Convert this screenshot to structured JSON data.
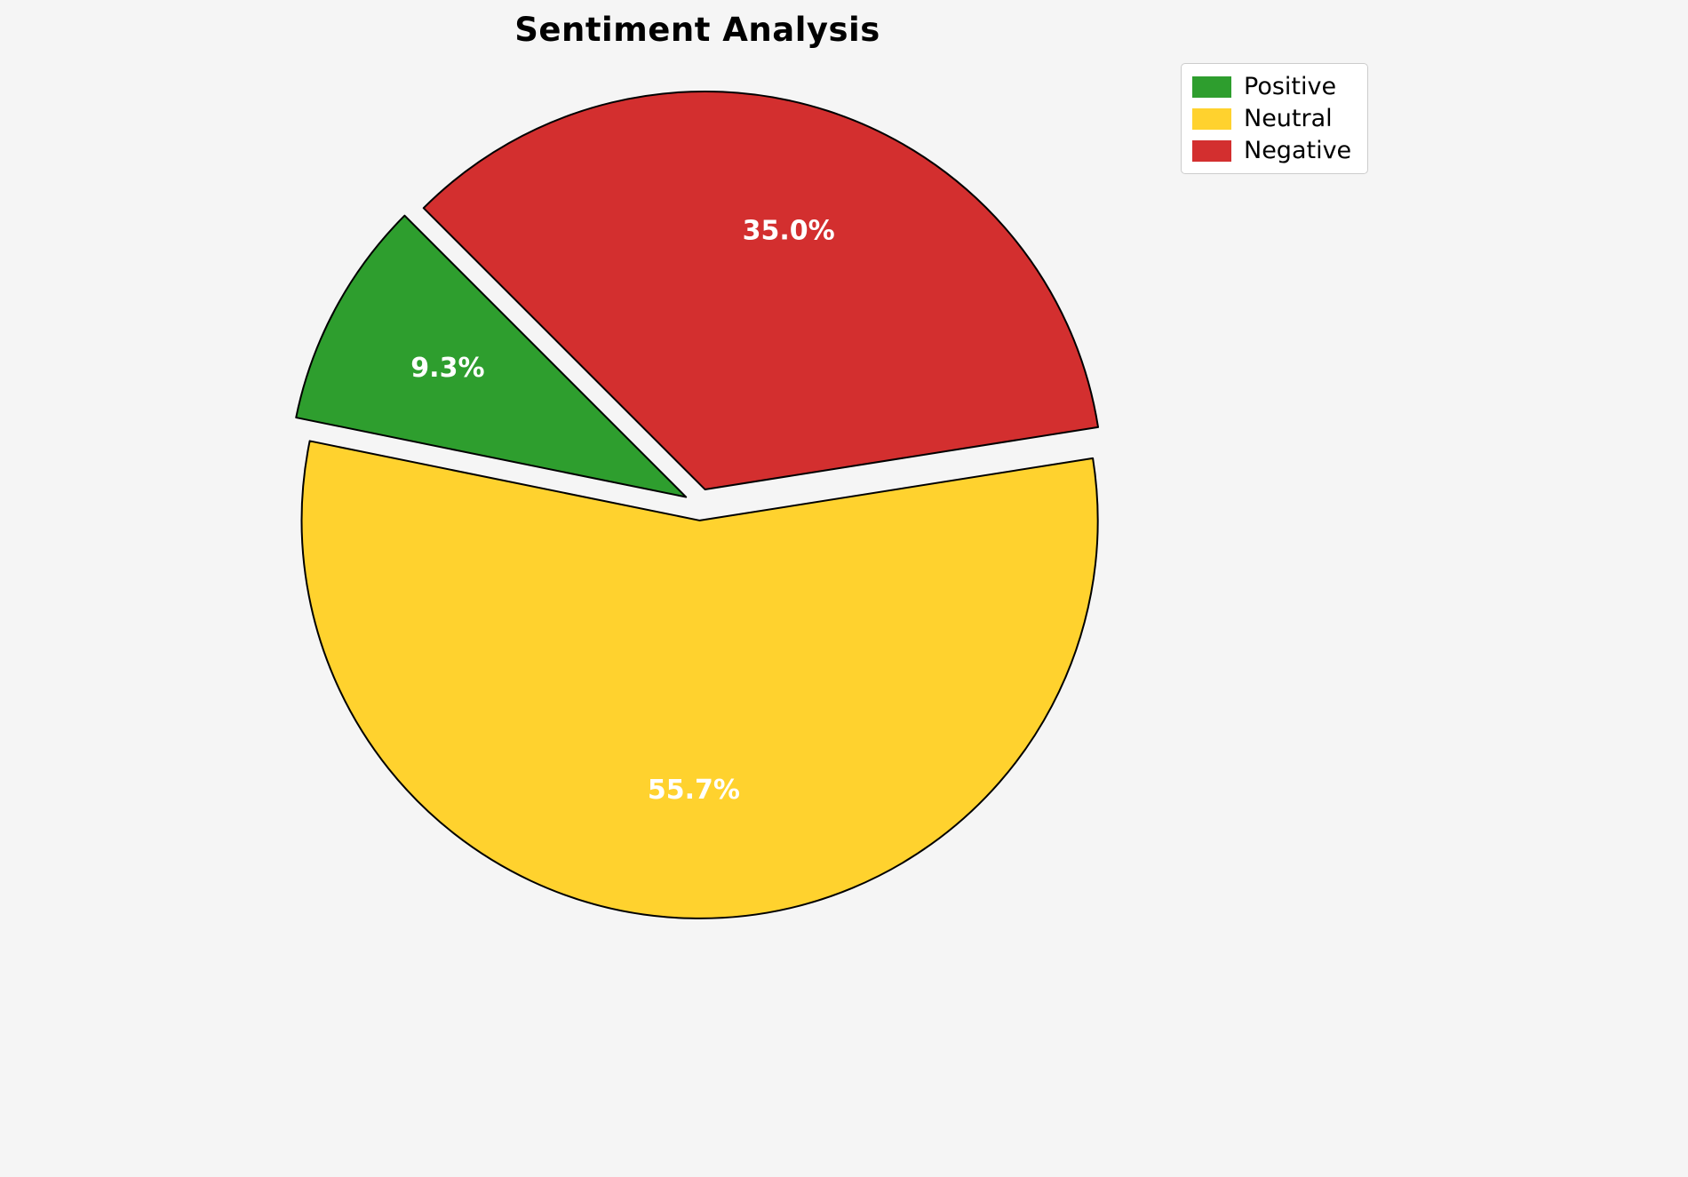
{
  "chart_data": {
    "type": "pie",
    "title": "Sentiment Analysis",
    "labels": [
      "Positive",
      "Neutral",
      "Negative"
    ],
    "values": [
      9.3,
      55.7,
      35.0
    ],
    "pct_labels": [
      "9.3%",
      "55.7%",
      "35.0%"
    ],
    "colors": [
      "#2e9e2e",
      "#ffd22e",
      "#d32f2f"
    ],
    "start_angle": 135,
    "counterclock": true,
    "explode": [
      0.04,
      0.04,
      0.04
    ],
    "pct_distance": 0.68,
    "legend_position": "upper right",
    "background_color": "#f5f5f5",
    "pct_label_color": "#ffffff",
    "edge_color": "#000000",
    "legend_border_color": "#cccccc",
    "legend_background": "#ffffff"
  }
}
